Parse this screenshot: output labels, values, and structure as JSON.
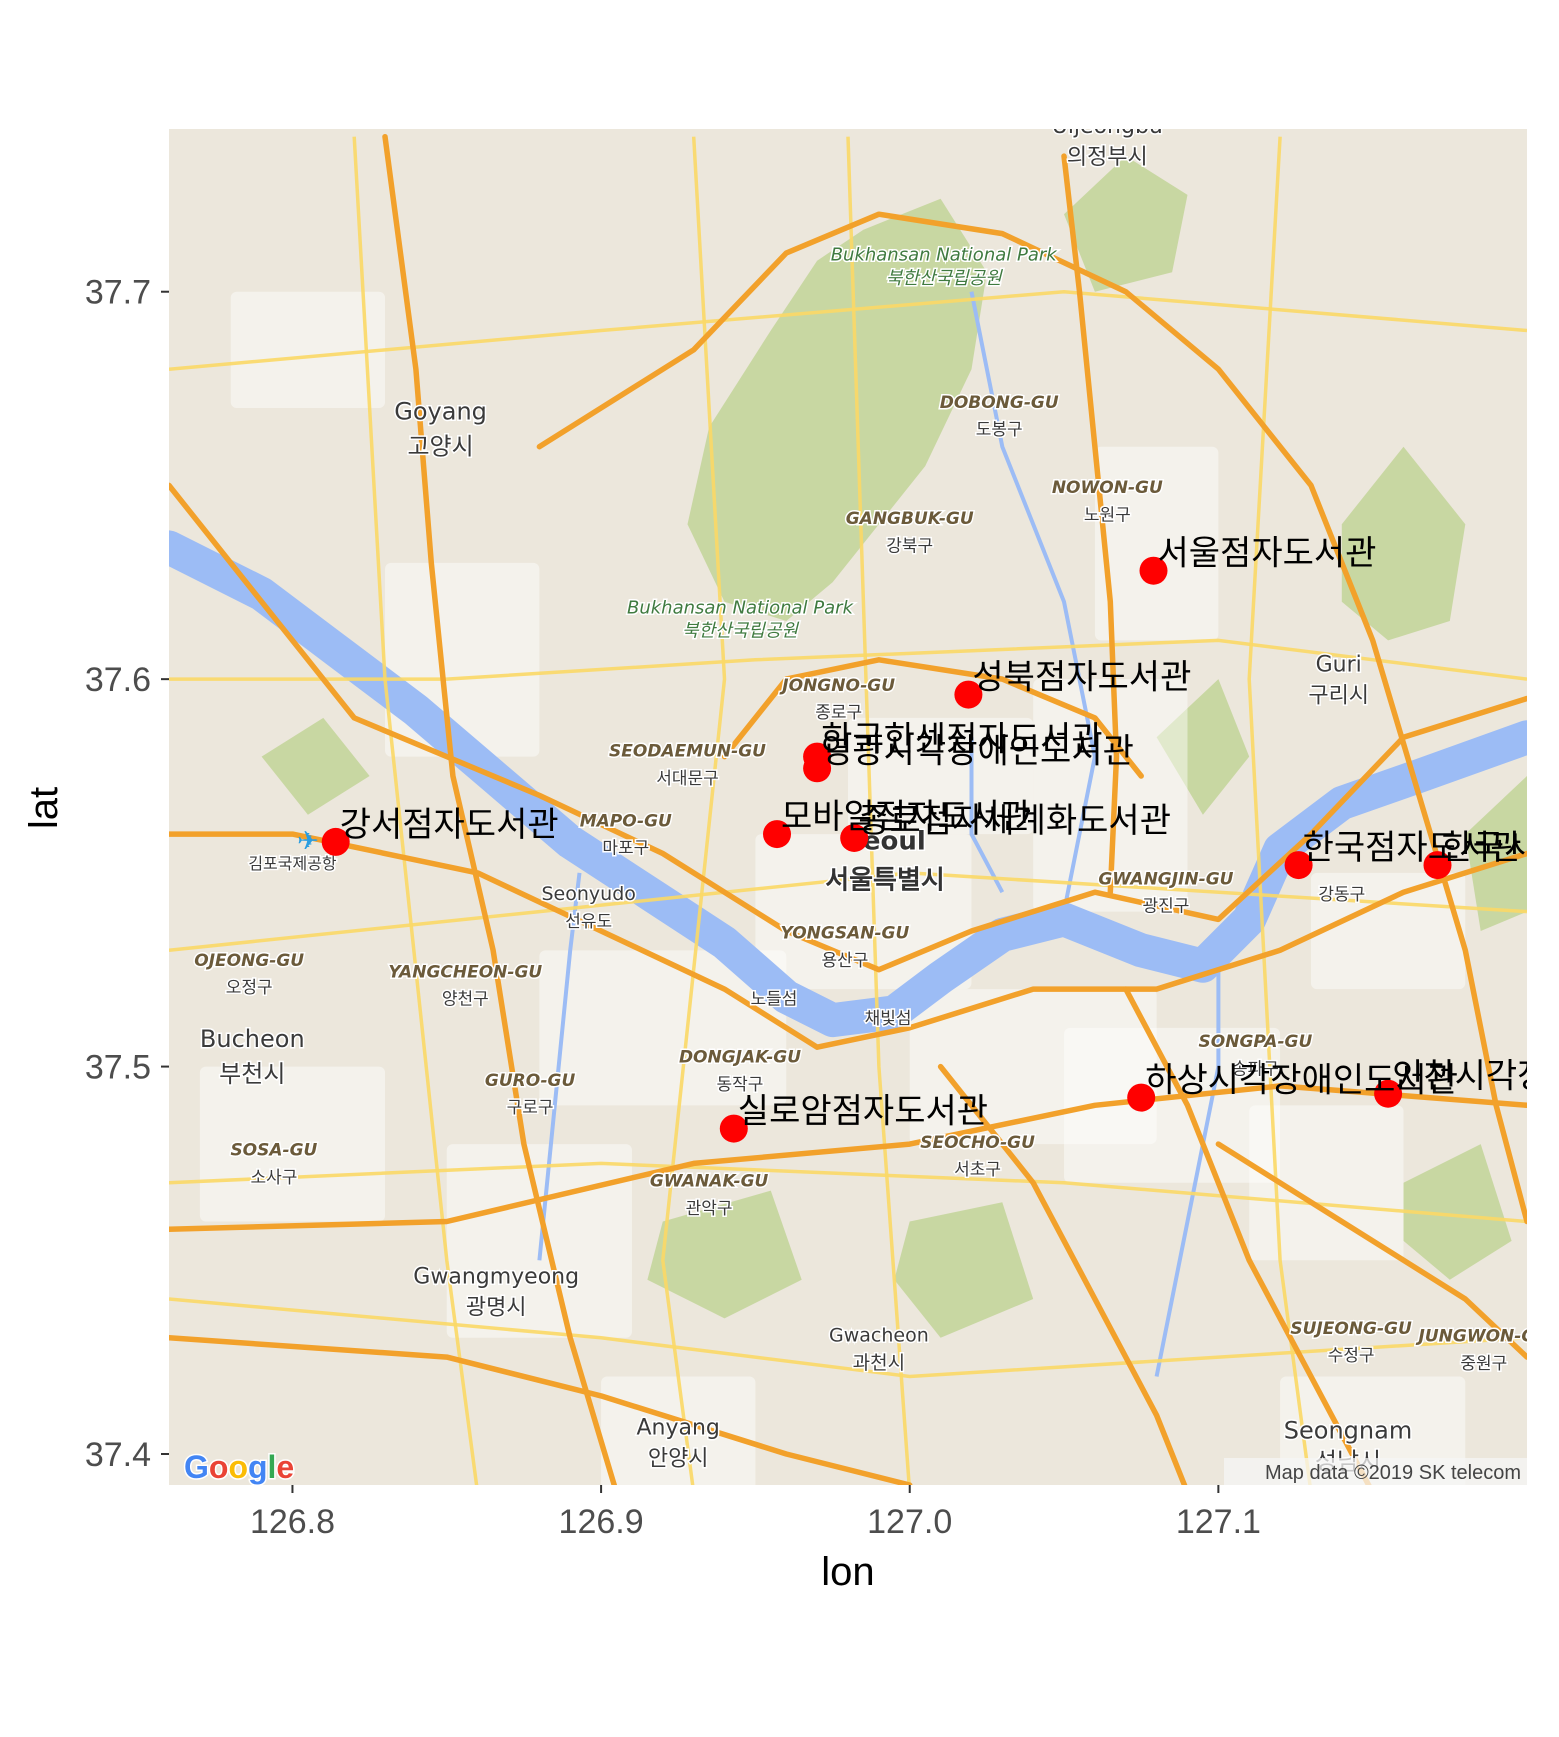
{
  "chart_data": {
    "type": "scatter",
    "xlabel": "lon",
    "ylabel": "lat",
    "xlim": [
      126.76,
      127.2
    ],
    "ylim": [
      37.392,
      37.742
    ],
    "xticks": [
      126.8,
      126.9,
      127.0,
      127.1
    ],
    "xtick_labels": [
      "126.8",
      "126.9",
      "127.0",
      "127.1"
    ],
    "yticks": [
      37.4,
      37.5,
      37.6,
      37.7
    ],
    "ytick_labels": [
      "37.4",
      "37.5",
      "37.6",
      "37.7"
    ],
    "grid": false,
    "point_color": "#ff0000",
    "points": [
      {
        "lon": 127.079,
        "lat": 37.628,
        "label": "서울점자도서관"
      },
      {
        "lon": 127.019,
        "lat": 37.596,
        "label": "성북점자도서관"
      },
      {
        "lon": 126.97,
        "lat": 37.58,
        "label": "한국한센점자도서관"
      },
      {
        "lon": 126.97,
        "lat": 37.577,
        "label": "영광시각장애인도서관"
      },
      {
        "lon": 126.814,
        "lat": 37.558,
        "label": "강서점자도서관"
      },
      {
        "lon": 126.957,
        "lat": 37.56,
        "label": "모바일점자도서관"
      },
      {
        "lon": 126.982,
        "lat": 37.559,
        "label": "종로점자세계화도서관"
      },
      {
        "lon": 127.126,
        "lat": 37.552,
        "label": "한국점자도서관"
      },
      {
        "lon": 127.171,
        "lat": 37.552,
        "label": "한국시각장애인도서관"
      },
      {
        "lon": 127.075,
        "lat": 37.492,
        "label": "하상시각장애인도서관"
      },
      {
        "lon": 127.155,
        "lat": 37.493,
        "label": "인천시각장애인도서관"
      },
      {
        "lon": 126.943,
        "lat": 37.484,
        "label": "실로암점자도서관"
      }
    ]
  },
  "map": {
    "attribution": "Map data ©2019 SK telecom",
    "logo": "Google",
    "colors": {
      "land": "#ece7dc",
      "park": "#c4d59b",
      "park_dark": "#b3c987",
      "water": "#9cbcf5",
      "highway": "#f2a12b",
      "road": "#fbd866",
      "urban": "#ffffff"
    },
    "place_labels": [
      {
        "text": "Uijeongbu",
        "lon": 127.064,
        "lat": 37.741,
        "size": 22
      },
      {
        "text": "의정부시",
        "lon": 127.064,
        "lat": 37.733,
        "size": 22
      },
      {
        "text": "Bukhansan National Park",
        "lon": 127.011,
        "lat": 37.708,
        "size": 18,
        "kind": "park"
      },
      {
        "text": "북한산국립공원",
        "lon": 127.011,
        "lat": 37.702,
        "size": 18,
        "kind": "park"
      },
      {
        "text": "Goyang",
        "lon": 126.848,
        "lat": 37.667,
        "size": 24
      },
      {
        "text": "고양시",
        "lon": 126.848,
        "lat": 37.658,
        "size": 24
      },
      {
        "text": "DOBONG-GU",
        "lon": 127.029,
        "lat": 37.67,
        "size": 17,
        "kind": "district"
      },
      {
        "text": "도봉구",
        "lon": 127.029,
        "lat": 37.663,
        "size": 17
      },
      {
        "text": "NOWON-GU",
        "lon": 127.064,
        "lat": 37.648,
        "size": 17,
        "kind": "district"
      },
      {
        "text": "노원구",
        "lon": 127.064,
        "lat": 37.641,
        "size": 17
      },
      {
        "text": "GANGBUK-GU",
        "lon": 127.0,
        "lat": 37.64,
        "size": 17,
        "kind": "district"
      },
      {
        "text": "강북구",
        "lon": 127.0,
        "lat": 37.633,
        "size": 17
      },
      {
        "text": "Bukhansan National Park",
        "lon": 126.945,
        "lat": 37.617,
        "size": 18,
        "kind": "park"
      },
      {
        "text": "북한산국립공원",
        "lon": 126.945,
        "lat": 37.611,
        "size": 18,
        "kind": "park"
      },
      {
        "text": "Guri",
        "lon": 127.139,
        "lat": 37.602,
        "size": 22
      },
      {
        "text": "구리시",
        "lon": 127.139,
        "lat": 37.594,
        "size": 22
      },
      {
        "text": "JONGNO-GU",
        "lon": 126.977,
        "lat": 37.597,
        "size": 17,
        "kind": "district"
      },
      {
        "text": "종로구",
        "lon": 126.977,
        "lat": 37.59,
        "size": 17
      },
      {
        "text": "SEODAEMUN-GU",
        "lon": 126.928,
        "lat": 37.58,
        "size": 17,
        "kind": "district"
      },
      {
        "text": "서대문구",
        "lon": 126.928,
        "lat": 37.573,
        "size": 17
      },
      {
        "text": "MAPO-GU",
        "lon": 126.908,
        "lat": 37.562,
        "size": 17,
        "kind": "district"
      },
      {
        "text": "마포구",
        "lon": 126.908,
        "lat": 37.555,
        "size": 17
      },
      {
        "text": "김포국제공항",
        "lon": 126.8,
        "lat": 37.551,
        "size": 16
      },
      {
        "text": "Seoul",
        "lon": 126.992,
        "lat": 37.556,
        "size": 26,
        "bold": true
      },
      {
        "text": "서울특별시",
        "lon": 126.992,
        "lat": 37.546,
        "size": 26,
        "bold": true
      },
      {
        "text": "Seonyudo",
        "lon": 126.896,
        "lat": 37.543,
        "size": 19
      },
      {
        "text": "선유도",
        "lon": 126.896,
        "lat": 37.536,
        "size": 17
      },
      {
        "text": "GWANGJIN-GU",
        "lon": 127.083,
        "lat": 37.547,
        "size": 17,
        "kind": "district"
      },
      {
        "text": "광진구",
        "lon": 127.083,
        "lat": 37.54,
        "size": 17
      },
      {
        "text": "강동구",
        "lon": 127.14,
        "lat": 37.543,
        "size": 17
      },
      {
        "text": "OJEONG-GU",
        "lon": 126.786,
        "lat": 37.526,
        "size": 17,
        "kind": "district"
      },
      {
        "text": "오정구",
        "lon": 126.786,
        "lat": 37.519,
        "size": 17
      },
      {
        "text": "YANGCHEON-GU",
        "lon": 126.856,
        "lat": 37.523,
        "size": 17,
        "kind": "district"
      },
      {
        "text": "양천구",
        "lon": 126.856,
        "lat": 37.516,
        "size": 17
      },
      {
        "text": "YONGSAN-GU",
        "lon": 126.979,
        "lat": 37.533,
        "size": 17,
        "kind": "district"
      },
      {
        "text": "용산구",
        "lon": 126.979,
        "lat": 37.526,
        "size": 17
      },
      {
        "text": "노들섬",
        "lon": 126.956,
        "lat": 37.516,
        "size": 17
      },
      {
        "text": "채빛섬",
        "lon": 126.993,
        "lat": 37.511,
        "size": 17
      },
      {
        "text": "SONGPA-GU",
        "lon": 127.112,
        "lat": 37.505,
        "size": 17,
        "kind": "district"
      },
      {
        "text": "송파구",
        "lon": 127.112,
        "lat": 37.498,
        "size": 17
      },
      {
        "text": "Bucheon",
        "lon": 126.787,
        "lat": 37.505,
        "size": 24
      },
      {
        "text": "부천시",
        "lon": 126.787,
        "lat": 37.496,
        "size": 24
      },
      {
        "text": "DONGJAK-GU",
        "lon": 126.945,
        "lat": 37.501,
        "size": 17,
        "kind": "district"
      },
      {
        "text": "동작구",
        "lon": 126.945,
        "lat": 37.494,
        "size": 17
      },
      {
        "text": "GURO-GU",
        "lon": 126.877,
        "lat": 37.495,
        "size": 17,
        "kind": "district"
      },
      {
        "text": "구로구",
        "lon": 126.877,
        "lat": 37.488,
        "size": 17
      },
      {
        "text": "SOSA-GU",
        "lon": 126.794,
        "lat": 37.477,
        "size": 17,
        "kind": "district"
      },
      {
        "text": "소사구",
        "lon": 126.794,
        "lat": 37.47,
        "size": 17
      },
      {
        "text": "SEOCHO-GU",
        "lon": 127.022,
        "lat": 37.479,
        "size": 17,
        "kind": "district"
      },
      {
        "text": "서초구",
        "lon": 127.022,
        "lat": 37.472,
        "size": 17
      },
      {
        "text": "GWANAK-GU",
        "lon": 126.935,
        "lat": 37.469,
        "size": 17,
        "kind": "district"
      },
      {
        "text": "관악구",
        "lon": 126.935,
        "lat": 37.462,
        "size": 17
      },
      {
        "text": "Gwangmyeong",
        "lon": 126.866,
        "lat": 37.444,
        "size": 22
      },
      {
        "text": "광명시",
        "lon": 126.866,
        "lat": 37.436,
        "size": 22
      },
      {
        "text": "Gwacheon",
        "lon": 126.99,
        "lat": 37.429,
        "size": 19
      },
      {
        "text": "과천시",
        "lon": 126.99,
        "lat": 37.422,
        "size": 19
      },
      {
        "text": "SUJEONG-GU",
        "lon": 127.143,
        "lat": 37.431,
        "size": 17,
        "kind": "district"
      },
      {
        "text": "수정구",
        "lon": 127.143,
        "lat": 37.424,
        "size": 17
      },
      {
        "text": "JUNGWON-GU",
        "lon": 127.186,
        "lat": 37.429,
        "size": 17,
        "kind": "district"
      },
      {
        "text": "중원구",
        "lon": 127.186,
        "lat": 37.422,
        "size": 17
      },
      {
        "text": "Seongnam",
        "lon": 127.142,
        "lat": 37.404,
        "size": 24
      },
      {
        "text": "성남시",
        "lon": 127.142,
        "lat": 37.396,
        "size": 24
      },
      {
        "text": "Anyang",
        "lon": 126.925,
        "lat": 37.405,
        "size": 22
      },
      {
        "text": "안양시",
        "lon": 126.925,
        "lat": 37.397,
        "size": 22
      }
    ]
  }
}
